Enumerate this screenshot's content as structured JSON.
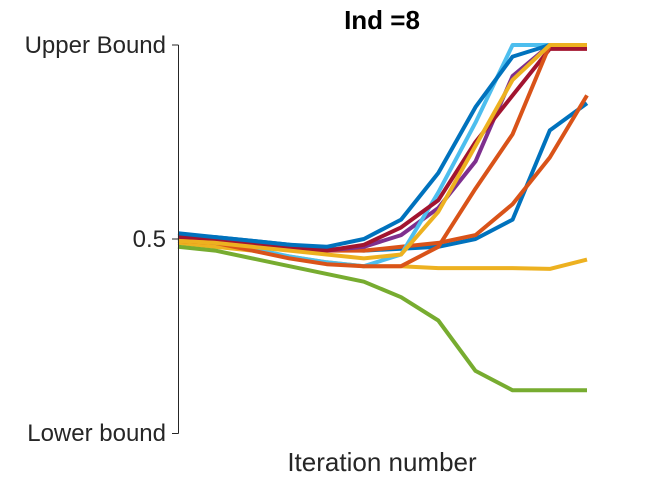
{
  "chart_data": {
    "type": "line",
    "title": "Ind =8",
    "xlabel": "Iteration number",
    "ylabel": "",
    "xlim": [
      0,
      11
    ],
    "ylim": [
      0,
      1
    ],
    "yticks": [
      {
        "value": 1,
        "label": "Upper Bound"
      },
      {
        "value": 0.5,
        "label": "0.5"
      },
      {
        "value": 0,
        "label": "Lower bound"
      }
    ],
    "xticks": [],
    "grid": false,
    "legend": "none",
    "series": [
      {
        "color": "#0072BD",
        "x": [
          0,
          1,
          2,
          3,
          4,
          5,
          6,
          7,
          8,
          9,
          10,
          11
        ],
        "y": [
          0.51,
          0.505,
          0.495,
          0.485,
          0.475,
          0.47,
          0.475,
          0.48,
          0.5,
          0.55,
          0.78,
          0.85
        ]
      },
      {
        "color": "#D95319",
        "x": [
          0,
          1,
          2,
          3,
          4,
          5,
          6,
          7,
          8,
          9,
          10,
          11
        ],
        "y": [
          0.5,
          0.495,
          0.485,
          0.475,
          0.47,
          0.47,
          0.48,
          0.49,
          0.51,
          0.59,
          0.71,
          0.87
        ]
      },
      {
        "color": "#EDB120",
        "x": [
          0,
          1,
          2,
          3,
          4,
          5,
          6,
          7,
          8,
          9,
          10,
          11
        ],
        "y": [
          0.49,
          0.48,
          0.47,
          0.455,
          0.44,
          0.43,
          0.43,
          0.425,
          0.425,
          0.425,
          0.423,
          0.447
        ]
      },
      {
        "color": "#7E2F8E",
        "x": [
          0,
          1,
          2,
          3,
          4,
          5,
          6,
          7,
          8,
          9,
          10,
          11
        ],
        "y": [
          0.505,
          0.5,
          0.49,
          0.48,
          0.47,
          0.48,
          0.51,
          0.58,
          0.7,
          0.92,
          1.0,
          1.0
        ]
      },
      {
        "color": "#77AC30",
        "x": [
          0,
          1,
          2,
          3,
          4,
          5,
          6,
          7,
          8,
          9,
          10,
          11
        ],
        "y": [
          0.48,
          0.47,
          0.45,
          0.43,
          0.41,
          0.39,
          0.35,
          0.29,
          0.16,
          0.11,
          0.11,
          0.11
        ]
      },
      {
        "color": "#4DBEEE",
        "x": [
          0,
          1,
          2,
          3,
          4,
          5,
          6,
          7,
          8,
          9,
          10,
          11
        ],
        "y": [
          0.5,
          0.49,
          0.475,
          0.455,
          0.44,
          0.43,
          0.46,
          0.62,
          0.8,
          1.0,
          1.0,
          1.0
        ]
      },
      {
        "color": "#A2142F",
        "x": [
          0,
          1,
          2,
          3,
          4,
          5,
          6,
          7,
          8,
          9,
          10,
          11
        ],
        "y": [
          0.505,
          0.5,
          0.49,
          0.48,
          0.47,
          0.485,
          0.53,
          0.6,
          0.75,
          0.87,
          0.99,
          0.99
        ]
      },
      {
        "color": "#0072BD",
        "x": [
          0,
          1,
          2,
          3,
          4,
          5,
          6,
          7,
          8,
          9,
          10,
          11
        ],
        "y": [
          0.515,
          0.505,
          0.495,
          0.485,
          0.48,
          0.5,
          0.55,
          0.67,
          0.84,
          0.97,
          1.0,
          1.0
        ]
      },
      {
        "color": "#D95319",
        "x": [
          0,
          1,
          2,
          3,
          4,
          5,
          6,
          7,
          8,
          9,
          10,
          11
        ],
        "y": [
          0.495,
          0.49,
          0.47,
          0.45,
          0.435,
          0.43,
          0.43,
          0.48,
          0.63,
          0.77,
          1.0,
          1.0
        ]
      },
      {
        "color": "#EDB120",
        "x": [
          0,
          1,
          2,
          3,
          4,
          5,
          6,
          7,
          8,
          9,
          10,
          11
        ],
        "y": [
          0.495,
          0.49,
          0.48,
          0.47,
          0.46,
          0.45,
          0.46,
          0.57,
          0.74,
          0.91,
          1.0,
          1.0
        ]
      }
    ]
  }
}
